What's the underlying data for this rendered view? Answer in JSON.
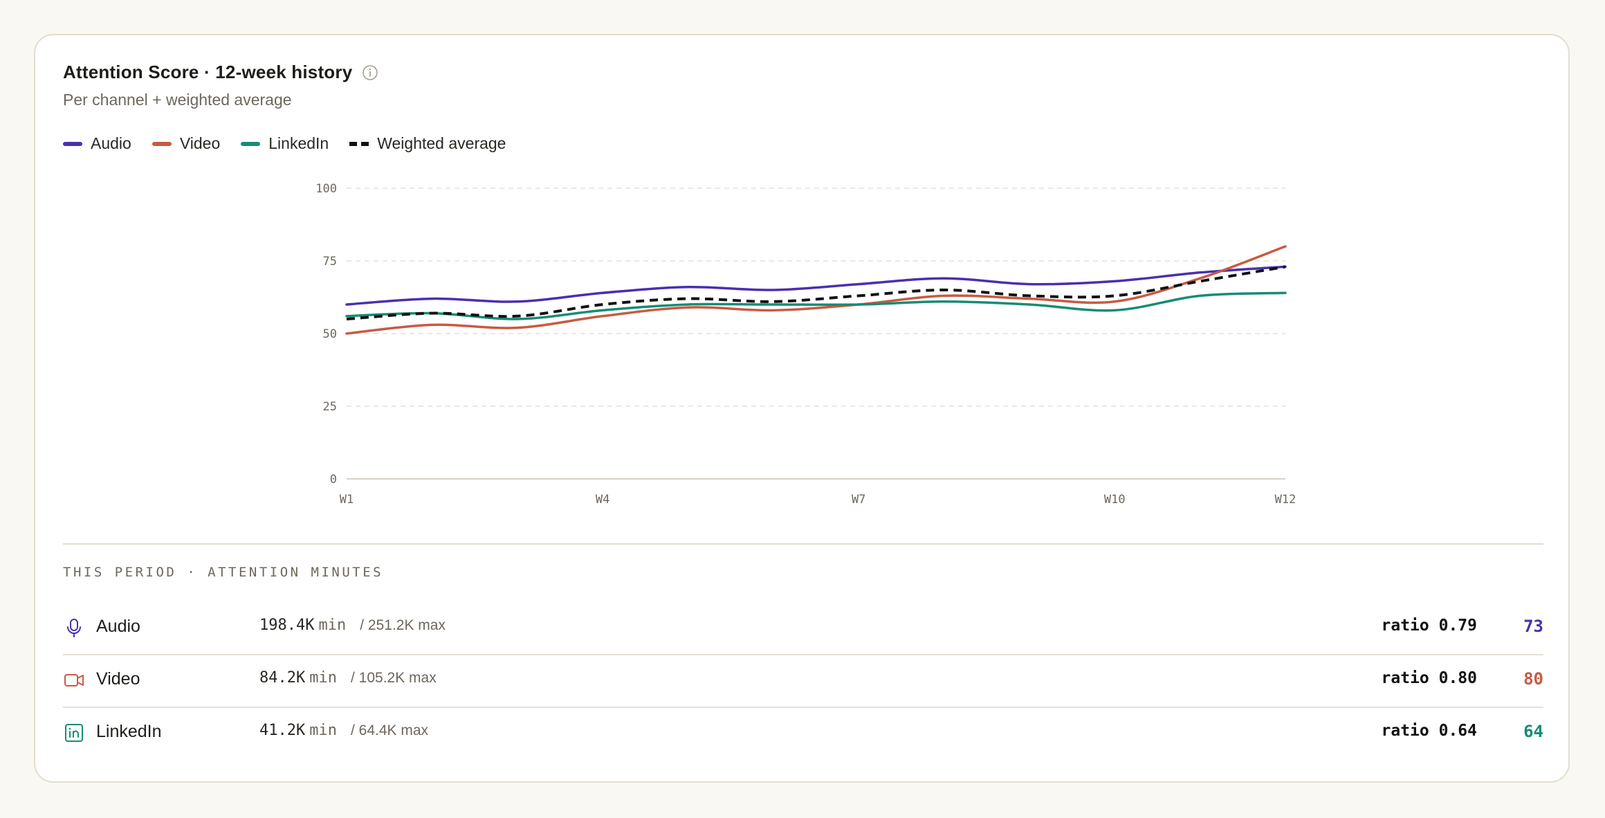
{
  "card": {
    "title": "Attention Score · 12-week history",
    "info_icon": "info-icon",
    "subtitle": "Per channel + weighted average"
  },
  "legend": [
    {
      "label": "Audio",
      "color": "#4b2fb0",
      "style": "solid"
    },
    {
      "label": "Video",
      "color": "#c85a42",
      "style": "solid"
    },
    {
      "label": "LinkedIn",
      "color": "#178c75",
      "style": "solid"
    },
    {
      "label": "Weighted average",
      "color": "#111111",
      "style": "dashed"
    }
  ],
  "chart_data": {
    "type": "line",
    "title": "Attention Score · 12-week history",
    "subtitle": "Per channel + weighted average",
    "x": [
      "W1",
      "W2",
      "W3",
      "W4",
      "W5",
      "W6",
      "W7",
      "W8",
      "W9",
      "W10",
      "W11",
      "W12"
    ],
    "x_tick_labels": [
      "W1",
      "W4",
      "W7",
      "W10",
      "W12"
    ],
    "ylim": [
      0,
      100
    ],
    "y_ticks": [
      0,
      25,
      50,
      75,
      100
    ],
    "grid": true,
    "legend_position": "top-left",
    "series": [
      {
        "name": "Audio",
        "color": "#4b2fb0",
        "dashed": false,
        "values": [
          60,
          62,
          61,
          64,
          66,
          65,
          67,
          69,
          67,
          68,
          71,
          73
        ]
      },
      {
        "name": "Video",
        "color": "#c85a42",
        "dashed": false,
        "values": [
          50,
          53,
          52,
          56,
          59,
          58,
          60,
          63,
          62,
          61,
          69,
          80
        ]
      },
      {
        "name": "LinkedIn",
        "color": "#178c75",
        "dashed": false,
        "values": [
          56,
          57,
          55,
          58,
          60,
          60,
          60,
          61,
          60,
          58,
          63,
          64
        ]
      },
      {
        "name": "Weighted average",
        "color": "#111111",
        "dashed": true,
        "values": [
          55,
          57,
          56,
          60,
          62,
          61,
          63,
          65,
          63,
          63,
          68,
          73
        ]
      }
    ]
  },
  "period": {
    "label": "THIS PERIOD · ATTENTION MINUTES",
    "rows": [
      {
        "icon": "microphone-icon",
        "name": "Audio",
        "minutes": "198.4K",
        "unit": "min",
        "max": "/ 251.2K max",
        "ratio": "ratio 0.79",
        "score": "73",
        "color": "#4b2fb0"
      },
      {
        "icon": "video-camera-icon",
        "name": "Video",
        "minutes": "84.2K",
        "unit": "min",
        "max": "/ 105.2K max",
        "ratio": "ratio 0.80",
        "score": "80",
        "color": "#c85a42"
      },
      {
        "icon": "linkedin-icon",
        "name": "LinkedIn",
        "minutes": "41.2K",
        "unit": "min",
        "max": "/ 64.4K max",
        "ratio": "ratio 0.64",
        "score": "64",
        "color": "#178c75"
      }
    ]
  }
}
